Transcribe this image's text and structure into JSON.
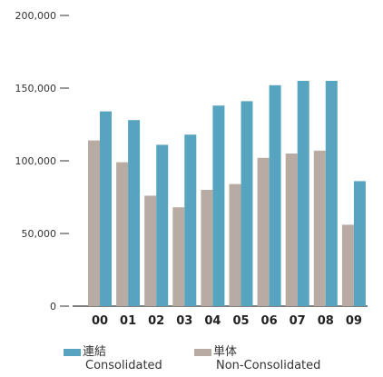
{
  "chart_data": {
    "type": "bar",
    "categories": [
      "00",
      "01",
      "02",
      "03",
      "04",
      "05",
      "06",
      "07",
      "08",
      "09"
    ],
    "series": [
      {
        "name": "単体 Non-Consolidated",
        "values": [
          114000,
          99000,
          76000,
          68000,
          80000,
          84000,
          102000,
          105000,
          107000,
          56000
        ]
      },
      {
        "name": "連結 Consolidated",
        "values": [
          134000,
          128000,
          111000,
          118000,
          138000,
          141000,
          152000,
          155000,
          155000,
          86000
        ]
      }
    ],
    "y_ticks": [
      "0",
      "50,000",
      "100,000",
      "150,000",
      "200,000"
    ],
    "ylim": [
      0,
      200000
    ],
    "colors": {
      "consolidated": "#56a4bf",
      "non_consolidated": "#b8aba3"
    }
  },
  "legend": {
    "consolidated_jp": "連結",
    "consolidated_en": "Consolidated",
    "non_consolidated_jp": "単体",
    "non_consolidated_en": "Non-Consolidated"
  }
}
